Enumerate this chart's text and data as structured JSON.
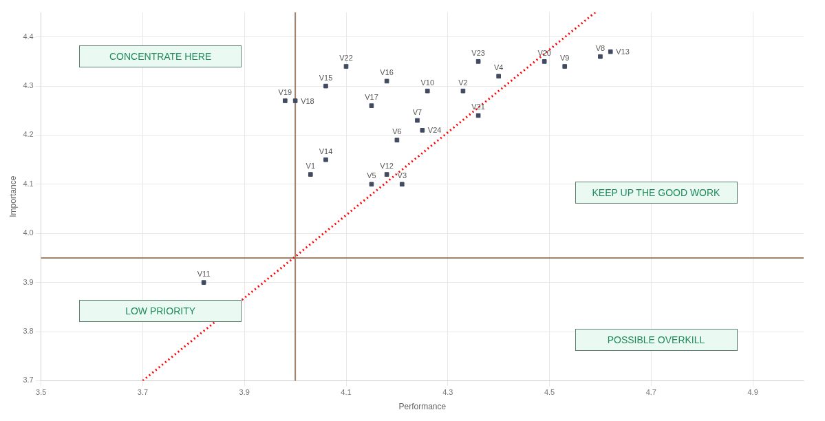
{
  "chart_data": {
    "type": "scatter",
    "xlabel": "Performance",
    "ylabel": "Importance",
    "xlim": [
      3.5,
      5.0
    ],
    "xticks": [
      3.5,
      3.7,
      3.9,
      4.1,
      4.3,
      4.5,
      4.7,
      4.9
    ],
    "ylim": [
      3.7,
      4.45
    ],
    "yticks": [
      3.7,
      3.8,
      3.9,
      {
        "value": 4.0,
        "label": "4.0"
      },
      4.1,
      4.2,
      4.3,
      4.4
    ],
    "grid": true,
    "marker": "square",
    "legend": false,
    "series": [
      {
        "color": "#404a60",
        "x": [
          3.82,
          3.98,
          4.0,
          4.06,
          4.1,
          4.18,
          4.15,
          4.26,
          4.33,
          4.36,
          4.4,
          4.49,
          4.53,
          4.6,
          4.62,
          4.36,
          4.2,
          4.24,
          4.25,
          4.06,
          4.03,
          4.18,
          4.15,
          4.21
        ],
        "values": [
          3.9,
          4.27,
          4.27,
          4.3,
          4.34,
          4.31,
          4.26,
          4.29,
          4.29,
          4.35,
          4.32,
          4.35,
          4.34,
          4.36,
          4.37,
          4.24,
          4.19,
          4.23,
          4.21,
          4.15,
          4.12,
          4.12,
          4.1,
          4.1
        ]
      },
      {
        "type": "line",
        "color": "#ff0000",
        "line_style": "dotted",
        "marker": "none",
        "x": [
          3.7,
          4.59
        ],
        "values": [
          3.7,
          4.45
        ]
      }
    ],
    "ref_lines": [
      {
        "axis": "x",
        "value": 4.0,
        "color": "#a0826a"
      },
      {
        "axis": "y",
        "value": 3.95,
        "color": "#a0826a"
      }
    ],
    "annotations": [
      "CONCENTRATE HERE",
      "KEEP UP THE GOOD WORK",
      "LOW PRIORITY",
      "POSSIBLE OVERKILL",
      {
        "text": "V11",
        "x": 3.82,
        "y": 3.9
      },
      {
        "text": "V19",
        "x": 3.98,
        "y": 4.27
      },
      {
        "text": "V18",
        "x": 4.0,
        "y": 4.27
      },
      {
        "text": "V15",
        "x": 4.06,
        "y": 4.3
      },
      {
        "text": "V22",
        "x": 4.1,
        "y": 4.34
      },
      {
        "text": "V16",
        "x": 4.18,
        "y": 4.31
      },
      {
        "text": "V17",
        "x": 4.15,
        "y": 4.26
      },
      {
        "text": "V10",
        "x": 4.26,
        "y": 4.29
      },
      {
        "text": "V2",
        "x": 4.33,
        "y": 4.29
      },
      {
        "text": "V23",
        "x": 4.36,
        "y": 4.35
      },
      {
        "text": "V4",
        "x": 4.4,
        "y": 4.32
      },
      {
        "text": "V20",
        "x": 4.49,
        "y": 4.35
      },
      {
        "text": "V9",
        "x": 4.53,
        "y": 4.34
      },
      {
        "text": "V8",
        "x": 4.6,
        "y": 4.36
      },
      {
        "text": "V13",
        "x": 4.62,
        "y": 4.37
      },
      {
        "text": "V21",
        "x": 4.36,
        "y": 4.24
      },
      {
        "text": "V6",
        "x": 4.2,
        "y": 4.19
      },
      {
        "text": "V7",
        "x": 4.24,
        "y": 4.23
      },
      {
        "text": "V24",
        "x": 4.25,
        "y": 4.21
      },
      {
        "text": "V14",
        "x": 4.06,
        "y": 4.15
      },
      {
        "text": "V1",
        "x": 4.03,
        "y": 4.12
      },
      {
        "text": "V12",
        "x": 4.18,
        "y": 4.12
      },
      {
        "text": "V5",
        "x": 4.15,
        "y": 4.1
      },
      {
        "text": "V3",
        "x": 4.21,
        "y": 4.1
      }
    ]
  }
}
